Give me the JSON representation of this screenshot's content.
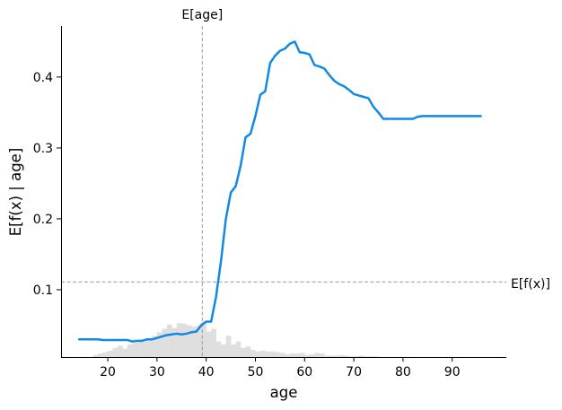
{
  "chart_data": {
    "type": "line",
    "title": "",
    "xlabel": "age",
    "ylabel": "E[f(x) | age]",
    "xlim": [
      10.5,
      101
    ],
    "ylim": [
      0.005,
      0.472
    ],
    "x_ticks": [
      20,
      30,
      40,
      50,
      60,
      70,
      80,
      90
    ],
    "y_ticks": [
      0.1,
      0.2,
      0.3,
      0.4
    ],
    "colors": {
      "line": "#1289e4",
      "histogram": "#d9d9d9",
      "reference": "#999999"
    },
    "reference_lines": {
      "vertical": {
        "label": "E[age]",
        "x": 39.2
      },
      "horizontal": {
        "label": "E[f(x)]",
        "y": 0.111
      }
    },
    "series": [
      {
        "x": [
          14,
          15,
          16,
          17,
          18,
          19,
          20,
          21,
          22,
          23,
          24,
          25,
          26,
          27,
          28,
          29,
          30,
          31,
          32,
          33,
          34,
          35,
          36,
          37,
          38,
          39,
          40,
          41,
          42,
          43,
          44,
          45,
          46,
          47,
          48,
          49,
          50,
          51,
          52,
          53,
          54,
          55,
          56,
          57,
          58,
          59,
          60,
          61,
          62,
          63,
          64,
          65,
          66,
          67,
          68,
          69,
          70,
          71,
          72,
          73,
          74,
          75,
          76,
          77,
          78,
          79,
          80,
          81,
          82,
          83,
          84,
          85,
          86,
          87,
          88,
          89,
          90,
          91,
          92,
          93,
          94,
          95,
          96
        ],
        "values": [
          0.03,
          0.03,
          0.03,
          0.03,
          0.03,
          0.029,
          0.029,
          0.029,
          0.029,
          0.029,
          0.029,
          0.027,
          0.028,
          0.028,
          0.03,
          0.03,
          0.032,
          0.034,
          0.036,
          0.037,
          0.038,
          0.037,
          0.038,
          0.04,
          0.041,
          0.05,
          0.055,
          0.055,
          0.09,
          0.14,
          0.2,
          0.237,
          0.246,
          0.275,
          0.315,
          0.32,
          0.345,
          0.375,
          0.38,
          0.42,
          0.43,
          0.437,
          0.44,
          0.447,
          0.45,
          0.435,
          0.434,
          0.432,
          0.417,
          0.415,
          0.412,
          0.403,
          0.395,
          0.39,
          0.387,
          0.382,
          0.376,
          0.374,
          0.372,
          0.37,
          0.358,
          0.35,
          0.341,
          0.341,
          0.341,
          0.341,
          0.341,
          0.341,
          0.341,
          0.344,
          0.345,
          0.345,
          0.345,
          0.345,
          0.345,
          0.345,
          0.345,
          0.345,
          0.345,
          0.345,
          0.345,
          0.345,
          0.345
        ]
      }
    ],
    "histogram": {
      "bin_edges": [
        17,
        18,
        19,
        20,
        21,
        22,
        23,
        24,
        25,
        26,
        27,
        28,
        29,
        30,
        31,
        32,
        33,
        34,
        35,
        36,
        37,
        38,
        39,
        40,
        41,
        42,
        43,
        44,
        45,
        46,
        47,
        48,
        49,
        50,
        51,
        52,
        53,
        54,
        55,
        56,
        57,
        58,
        59,
        60,
        61,
        62,
        63,
        64,
        65,
        66,
        67,
        68,
        69,
        70,
        71,
        72,
        73,
        74,
        75
      ],
      "heights": [
        0.003,
        0.005,
        0.007,
        0.009,
        0.013,
        0.016,
        0.012,
        0.018,
        0.02,
        0.024,
        0.022,
        0.024,
        0.03,
        0.035,
        0.04,
        0.046,
        0.041,
        0.048,
        0.047,
        0.045,
        0.043,
        0.044,
        0.049,
        0.036,
        0.04,
        0.022,
        0.018,
        0.03,
        0.018,
        0.022,
        0.013,
        0.015,
        0.01,
        0.008,
        0.009,
        0.008,
        0.008,
        0.007,
        0.006,
        0.004,
        0.005,
        0.005,
        0.006,
        0.003,
        0.004,
        0.006,
        0.005,
        0.002,
        0.002,
        0.002,
        0.003,
        0.002,
        0.001,
        0.001,
        0.002,
        0.001,
        0.001,
        0.001
      ]
    }
  }
}
